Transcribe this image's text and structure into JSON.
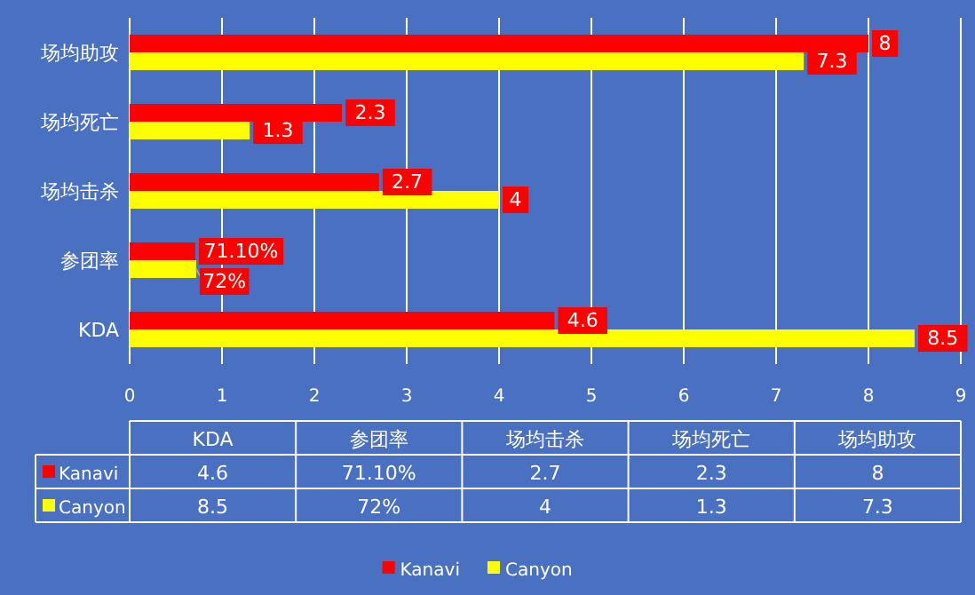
{
  "chart_data": {
    "type": "bar",
    "orientation": "horizontal",
    "categories": [
      "场均助攻",
      "场均死亡",
      "场均击杀",
      "参团率",
      "KDA"
    ],
    "series": [
      {
        "name": "Kanavi",
        "color": "#ff0000",
        "values": [
          8,
          2.3,
          2.7,
          0.711,
          4.6
        ],
        "value_labels": [
          "8",
          "2.3",
          "2.7",
          "71.10%",
          "4.6"
        ]
      },
      {
        "name": "Canyon",
        "color": "#ffff00",
        "values": [
          7.3,
          1.3,
          4,
          0.72,
          8.5
        ],
        "value_labels": [
          "7.3",
          "1.3",
          "4",
          "72%",
          "8.5"
        ]
      }
    ],
    "xlim": [
      0,
      9
    ],
    "xticks": [
      0,
      1,
      2,
      3,
      4,
      5,
      6,
      7,
      8,
      9
    ],
    "grid": "x",
    "legend": "bottom"
  }
}
